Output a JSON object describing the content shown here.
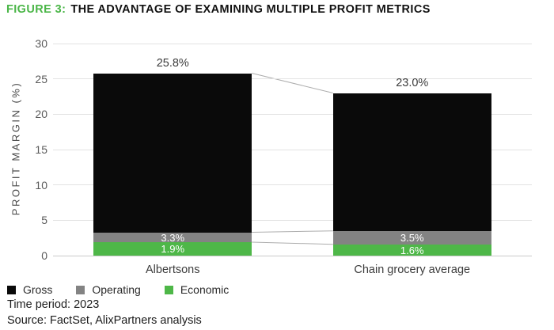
{
  "title": {
    "prefix": "FIGURE 3:",
    "text": "THE ADVANTAGE OF EXAMINING MULTIPLE PROFIT METRICS"
  },
  "chart_data": {
    "type": "bar",
    "subtype": "layered-overlay",
    "title": "FIGURE 3: THE ADVANTAGE OF EXAMINING MULTIPLE PROFIT METRICS",
    "categories": [
      "Albertsons",
      "Chain grocery average"
    ],
    "series": [
      {
        "name": "Gross",
        "color": "#0a0a0a",
        "values": [
          25.8,
          23.0
        ],
        "labels": [
          "25.8%",
          "23.0%"
        ],
        "label_style": "above-bar"
      },
      {
        "name": "Operating",
        "color": "#838383",
        "values": [
          3.3,
          3.5
        ],
        "labels": [
          "3.3%",
          "3.5%"
        ],
        "label_style": "inside-white"
      },
      {
        "name": "Economic",
        "color": "#4eb748",
        "values": [
          1.9,
          1.6
        ],
        "labels": [
          "1.9%",
          "1.6%"
        ],
        "label_style": "inside-white"
      }
    ],
    "xlabel": "",
    "ylabel": "PROFIT MARGIN (%)",
    "ylim": [
      0,
      30
    ],
    "yticks": [
      0,
      5,
      10,
      15,
      20,
      25,
      30
    ],
    "grid": true,
    "connectors_between_bars": true,
    "legend_position": "bottom-left"
  },
  "footer": {
    "time_period": "Time period: 2023",
    "source": "Source: FactSet, AlixPartners analysis"
  },
  "colors": {
    "accent_green": "#4bb648",
    "bar_black": "#0a0a0a",
    "bar_gray": "#838383",
    "bar_green": "#4eb748",
    "gridline": "#e3e3e3",
    "connector": "#adadad"
  }
}
